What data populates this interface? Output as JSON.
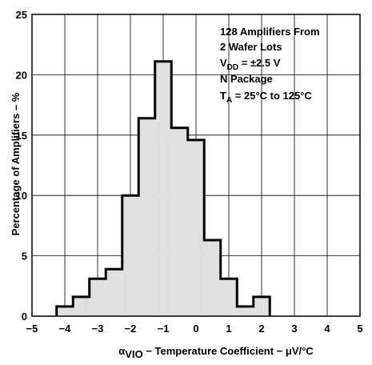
{
  "chart_data": {
    "type": "bar",
    "style": "histogram",
    "bin_edges": [
      -4.25,
      -3.75,
      -3.25,
      -2.75,
      -2.25,
      -1.75,
      -1.25,
      -0.75,
      -0.25,
      0.25,
      0.75,
      1.25,
      1.75,
      2.25
    ],
    "values": [
      0.8,
      1.6,
      3.1,
      3.9,
      10.0,
      16.4,
      21.1,
      15.6,
      14.6,
      6.3,
      3.1,
      0.8,
      1.6
    ],
    "xlim": [
      -5,
      5
    ],
    "ylim": [
      0,
      25
    ],
    "x_ticks": [
      {
        "value": -5,
        "label": "−5"
      },
      {
        "value": -4,
        "label": "−4"
      },
      {
        "value": -3,
        "label": "−3"
      },
      {
        "value": -2,
        "label": "−2"
      },
      {
        "value": -1,
        "label": "−1"
      },
      {
        "value": 0,
        "label": "0"
      },
      {
        "value": 1,
        "label": "1"
      },
      {
        "value": 2,
        "label": "2"
      },
      {
        "value": 3,
        "label": "3"
      },
      {
        "value": 4,
        "label": "4"
      },
      {
        "value": 5,
        "label": "5"
      }
    ],
    "y_ticks": [
      {
        "value": 0,
        "label": "0"
      },
      {
        "value": 5,
        "label": "5"
      },
      {
        "value": 10,
        "label": "10"
      },
      {
        "value": 15,
        "label": "15"
      },
      {
        "value": 20,
        "label": "20"
      },
      {
        "value": 25,
        "label": "25"
      }
    ],
    "xlabel": {
      "symbol": "α",
      "subscript": "VIO",
      "text": " − Temperature Coefficient − μV/°C"
    },
    "ylabel": "Percentage of Amplifiers – %",
    "grid": true,
    "colors": {
      "fill": "#e0e0e0",
      "outline": "#000000",
      "grid": "#000000"
    },
    "annotation": {
      "line1": "128 Amplifiers From",
      "line2": "2 Wafer Lots",
      "line3": {
        "main": "V",
        "sub": "DD",
        "rest": " = ±2.5 V"
      },
      "line4": "N Package",
      "line5": {
        "main": "T",
        "sub": "A",
        "rest": " = 25°C to 125°C"
      }
    }
  }
}
